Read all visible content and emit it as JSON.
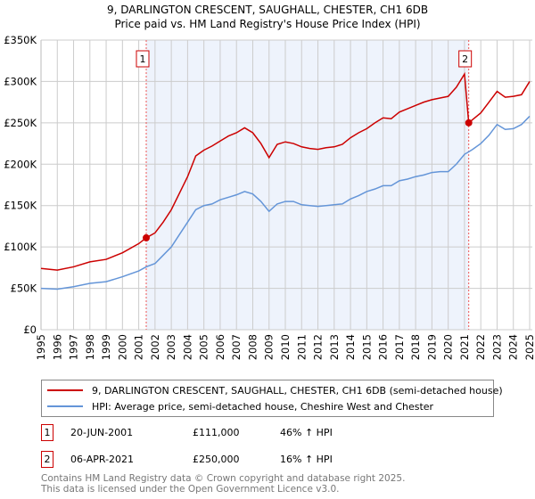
{
  "chart_data": {
    "type": "line",
    "title": "9, DARLINGTON CRESCENT, SAUGHALL, CHESTER, CH1 6DB",
    "subtitle": "Price paid vs. HM Land Registry's House Price Index (HPI)",
    "xlim": [
      1995,
      2025.2
    ],
    "ylim": [
      0,
      350000
    ],
    "yticks": [
      {
        "v": 0,
        "label": "£0"
      },
      {
        "v": 50000,
        "label": "£50K"
      },
      {
        "v": 100000,
        "label": "£100K"
      },
      {
        "v": 150000,
        "label": "£150K"
      },
      {
        "v": 200000,
        "label": "£200K"
      },
      {
        "v": 250000,
        "label": "£250K"
      },
      {
        "v": 300000,
        "label": "£300K"
      },
      {
        "v": 350000,
        "label": "£350K"
      }
    ],
    "xticks": [
      "1995",
      "1996",
      "1997",
      "1998",
      "1999",
      "2000",
      "2001",
      "2002",
      "2003",
      "2004",
      "2005",
      "2006",
      "2007",
      "2008",
      "2009",
      "2010",
      "2011",
      "2012",
      "2013",
      "2014",
      "2015",
      "2016",
      "2017",
      "2018",
      "2019",
      "2020",
      "2021",
      "2022",
      "2023",
      "2024",
      "2025"
    ],
    "x": [
      1995,
      1996,
      1997,
      1998,
      1999,
      2000,
      2001,
      2001.46,
      2002,
      2002.5,
      2003,
      2003.5,
      2004,
      2004.5,
      2005,
      2005.5,
      2006,
      2006.5,
      2007,
      2007.5,
      2008,
      2008.5,
      2009,
      2009.5,
      2010,
      2010.5,
      2011,
      2011.5,
      2012,
      2012.5,
      2013,
      2013.5,
      2014,
      2014.5,
      2015,
      2015.5,
      2016,
      2016.5,
      2017,
      2017.5,
      2018,
      2018.5,
      2019,
      2019.5,
      2020,
      2020.5,
      2021,
      2021.26,
      2021.5,
      2022,
      2022.5,
      2023,
      2023.5,
      2024,
      2024.5,
      2025
    ],
    "series": [
      {
        "name": "9, DARLINGTON CRESCENT, SAUGHALL, CHESTER, CH1 6DB (semi-detached house)",
        "color": "#cc0000",
        "values": [
          74000,
          72000,
          76000,
          82000,
          85000,
          93000,
          104000,
          111000,
          117000,
          130000,
          145000,
          165000,
          185000,
          210000,
          217000,
          222000,
          228000,
          234000,
          238000,
          244000,
          238000,
          225000,
          208000,
          224000,
          227000,
          225000,
          221000,
          219000,
          218000,
          220000,
          221000,
          224000,
          232000,
          238000,
          243000,
          250000,
          256000,
          255000,
          263000,
          267000,
          271000,
          275000,
          278000,
          280000,
          282000,
          293000,
          309000,
          250000,
          254000,
          262000,
          275000,
          288000,
          281000,
          282000,
          284000,
          300000
        ]
      },
      {
        "name": "HPI: Average price, semi-detached house, Cheshire West and Chester",
        "color": "#6495d8",
        "values": [
          50000,
          49000,
          52000,
          56000,
          58000,
          64000,
          71000,
          76000,
          80000,
          90000,
          100000,
          115000,
          130000,
          145000,
          150000,
          152000,
          157000,
          160000,
          163000,
          167000,
          164000,
          155000,
          143000,
          152000,
          155000,
          155000,
          151000,
          150000,
          149000,
          150000,
          151000,
          152000,
          158000,
          162000,
          167000,
          170000,
          174000,
          174000,
          180000,
          182000,
          185000,
          187000,
          190000,
          191000,
          191000,
          200000,
          212000,
          215000,
          218000,
          225000,
          235000,
          248000,
          242000,
          243000,
          248000,
          258000
        ]
      }
    ],
    "sales": [
      {
        "id": "1",
        "x": 2001.46,
        "y": 111000
      },
      {
        "id": "2",
        "x": 2021.26,
        "y": 250000
      }
    ],
    "shaded_range": [
      2001.46,
      2021.26
    ],
    "grid": true,
    "legend_position": "bottom"
  },
  "legend": [
    "9, DARLINGTON CRESCENT, SAUGHALL, CHESTER, CH1 6DB (semi-detached house)",
    "HPI: Average price, semi-detached house, Cheshire West and Chester"
  ],
  "sales_table": [
    {
      "num": "1",
      "date": "20-JUN-2001",
      "price": "£111,000",
      "hpi": "46% ↑ HPI"
    },
    {
      "num": "2",
      "date": "06-APR-2021",
      "price": "£250,000",
      "hpi": "16% ↑ HPI"
    }
  ],
  "footer": [
    "Contains HM Land Registry data © Crown copyright and database right 2025.",
    "This data is licensed under the Open Government Licence v3.0."
  ],
  "colors": {
    "red": "#cc0000",
    "blue": "#6495d8",
    "shade": "#eef3fc"
  }
}
